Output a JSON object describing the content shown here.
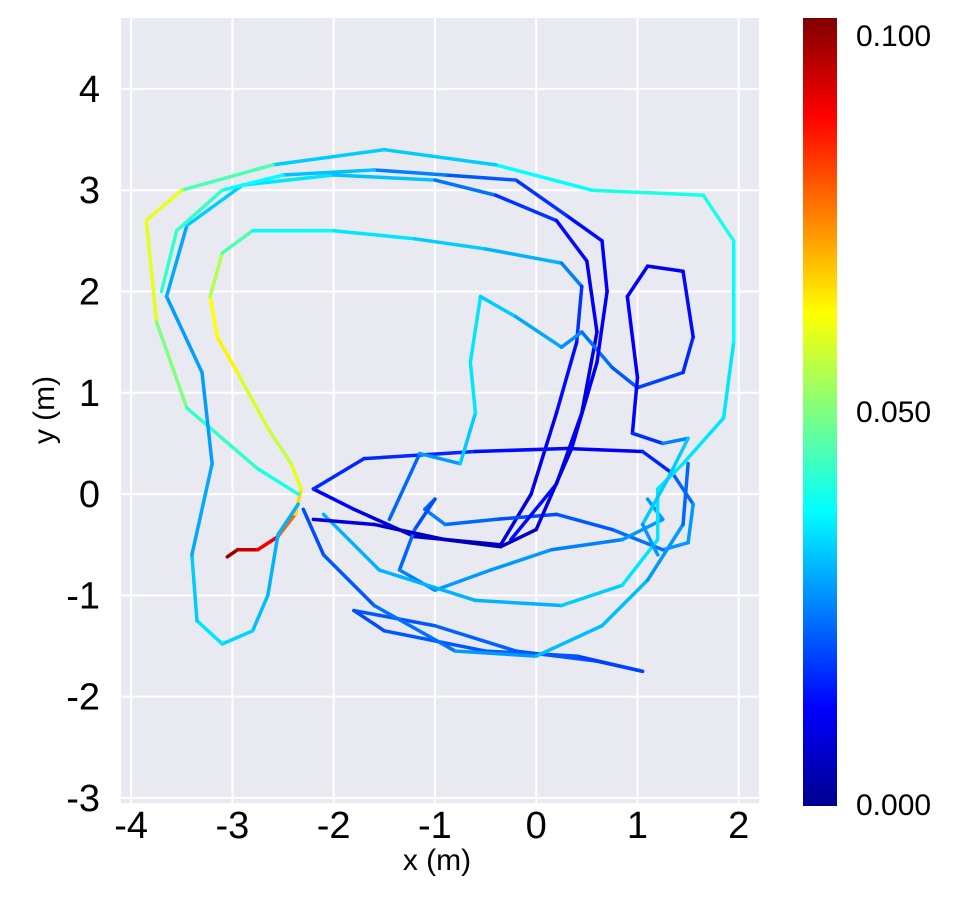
{
  "chart_data": {
    "type": "line",
    "xlabel": "x (m)",
    "ylabel": "y (m)",
    "xlim": [
      -4.1,
      2.2
    ],
    "ylim": [
      -3.05,
      4.7
    ],
    "xticks": [
      "-4",
      "-3",
      "-2",
      "-1",
      "0",
      "1",
      "2"
    ],
    "yticks": [
      "-3",
      "-2",
      "-1",
      "0",
      "1",
      "2",
      "3",
      "4"
    ],
    "grid": true,
    "background": "#e9e9f1",
    "colorbar": {
      "colormap": "jet",
      "range": [
        0.0,
        0.1
      ],
      "tick_labels": [
        "0.000",
        "0.050",
        "0.100"
      ],
      "placement": "right"
    },
    "series": [
      {
        "color_value_by_point": true,
        "points": [
          [
            -3.05,
            -0.62,
            0.1
          ],
          [
            -2.95,
            -0.55,
            0.095
          ],
          [
            -2.75,
            -0.55,
            0.092
          ],
          [
            -2.55,
            -0.42,
            0.085
          ],
          [
            -2.38,
            -0.2,
            0.07
          ],
          [
            -2.32,
            0.05,
            0.062
          ],
          [
            -2.42,
            0.3,
            0.058
          ],
          [
            -2.65,
            0.65,
            0.055
          ],
          [
            -2.95,
            1.2,
            0.062
          ],
          [
            -3.15,
            1.55,
            0.065
          ],
          [
            -3.22,
            1.95,
            0.06
          ],
          [
            -3.1,
            2.38,
            0.05
          ],
          [
            -2.8,
            2.6,
            0.04
          ],
          [
            -2.0,
            2.6,
            0.035
          ],
          [
            -1.2,
            2.52,
            0.035
          ],
          [
            -0.5,
            2.42,
            0.03
          ],
          [
            0.25,
            2.28,
            0.03
          ],
          [
            0.45,
            2.05,
            0.02
          ],
          [
            0.4,
            1.5,
            0.015
          ],
          [
            0.2,
            0.8,
            0.012
          ],
          [
            -0.05,
            0.0,
            0.01
          ],
          [
            -0.35,
            -0.5,
            0.008
          ]
        ]
      },
      {
        "color_value_by_point": true,
        "points": [
          [
            -0.35,
            -0.5,
            0.008
          ],
          [
            -1.2,
            -0.42,
            0.008
          ],
          [
            -1.8,
            -0.15,
            0.01
          ],
          [
            -2.2,
            0.05,
            0.015
          ],
          [
            -1.7,
            0.35,
            0.018
          ],
          [
            -0.6,
            0.42,
            0.015
          ],
          [
            0.3,
            0.45,
            0.012
          ],
          [
            1.05,
            0.42,
            0.012
          ],
          [
            1.35,
            0.2,
            0.02
          ],
          [
            1.55,
            -0.1,
            0.025
          ],
          [
            1.5,
            -0.48,
            0.03
          ],
          [
            1.25,
            -0.55,
            0.025
          ],
          [
            0.75,
            -0.35,
            0.022
          ],
          [
            0.2,
            -0.2,
            0.02
          ],
          [
            -0.4,
            -0.25,
            0.02
          ],
          [
            -0.9,
            -0.3,
            0.025
          ],
          [
            -1.1,
            -0.15,
            0.025
          ],
          [
            -1.0,
            -0.05,
            0.02
          ],
          [
            -1.2,
            -0.35,
            0.02
          ],
          [
            -1.35,
            -0.75,
            0.025
          ],
          [
            -1.0,
            -0.95,
            0.025
          ],
          [
            -0.45,
            -0.75,
            0.03
          ],
          [
            0.15,
            -0.55,
            0.025
          ],
          [
            0.85,
            -0.45,
            0.025
          ],
          [
            1.25,
            -0.25,
            0.03
          ],
          [
            1.1,
            -0.05,
            0.025
          ]
        ]
      },
      {
        "color_value_by_point": true,
        "points": [
          [
            -2.1,
            -0.2,
            0.03
          ],
          [
            -1.55,
            -0.75,
            0.03
          ],
          [
            -0.6,
            -1.05,
            0.03
          ],
          [
            0.25,
            -1.1,
            0.03
          ],
          [
            0.85,
            -0.9,
            0.035
          ],
          [
            1.2,
            -0.45,
            0.035
          ],
          [
            1.2,
            0.05,
            0.035
          ],
          [
            1.45,
            0.3,
            0.035
          ],
          [
            1.85,
            0.75,
            0.035
          ],
          [
            1.95,
            1.5,
            0.035
          ],
          [
            1.95,
            2.5,
            0.04
          ],
          [
            1.65,
            2.95,
            0.04
          ],
          [
            0.55,
            3.0,
            0.04
          ],
          [
            -0.4,
            3.25,
            0.035
          ],
          [
            -1.5,
            3.4,
            0.03
          ],
          [
            -2.6,
            3.25,
            0.035
          ],
          [
            -3.5,
            3.0,
            0.055
          ],
          [
            -3.85,
            2.7,
            0.065
          ],
          [
            -3.75,
            1.7,
            0.055
          ],
          [
            -3.45,
            0.85,
            0.045
          ],
          [
            -2.75,
            0.25,
            0.04
          ],
          [
            -2.35,
            0.0,
            0.04
          ]
        ]
      },
      {
        "color_value_by_point": true,
        "points": [
          [
            -2.35,
            -0.1,
            0.03
          ],
          [
            -2.55,
            -0.4,
            0.03
          ],
          [
            -2.65,
            -1.0,
            0.03
          ],
          [
            -2.8,
            -1.35,
            0.032
          ],
          [
            -3.1,
            -1.48,
            0.035
          ],
          [
            -3.35,
            -1.25,
            0.035
          ],
          [
            -3.4,
            -0.6,
            0.03
          ],
          [
            -3.2,
            0.3,
            0.028
          ],
          [
            -3.3,
            1.2,
            0.028
          ],
          [
            -3.65,
            1.95,
            0.028
          ],
          [
            -3.45,
            2.65,
            0.03
          ],
          [
            -2.9,
            3.05,
            0.035
          ],
          [
            -2.0,
            3.15,
            0.035
          ],
          [
            -1.0,
            3.1,
            0.028
          ],
          [
            -0.4,
            2.95,
            0.02
          ],
          [
            0.2,
            2.7,
            0.015
          ],
          [
            0.5,
            2.3,
            0.012
          ],
          [
            0.6,
            1.6,
            0.01
          ],
          [
            0.45,
            0.8,
            0.01
          ],
          [
            0.2,
            0.1,
            0.012
          ],
          [
            -0.25,
            -0.45,
            0.015
          ]
        ]
      },
      {
        "color_value_by_point": true,
        "points": [
          [
            -1.45,
            -0.25,
            0.02
          ],
          [
            -1.15,
            0.4,
            0.025
          ],
          [
            -0.75,
            0.3,
            0.03
          ],
          [
            -0.6,
            0.8,
            0.035
          ],
          [
            -0.65,
            1.3,
            0.035
          ],
          [
            -0.55,
            1.95,
            0.035
          ],
          [
            -0.2,
            1.75,
            0.03
          ],
          [
            0.25,
            1.45,
            0.028
          ],
          [
            0.45,
            1.6,
            0.025
          ],
          [
            0.75,
            1.25,
            0.022
          ],
          [
            1.0,
            1.05,
            0.02
          ],
          [
            1.45,
            1.2,
            0.018
          ],
          [
            1.55,
            1.55,
            0.015
          ],
          [
            1.45,
            2.2,
            0.012
          ],
          [
            1.1,
            2.25,
            0.012
          ],
          [
            0.9,
            1.95,
            0.012
          ],
          [
            1.0,
            1.15,
            0.012
          ],
          [
            0.95,
            0.6,
            0.014
          ],
          [
            1.25,
            0.5,
            0.02
          ],
          [
            1.5,
            0.55,
            0.03
          ],
          [
            1.3,
            0.15,
            0.035
          ],
          [
            1.05,
            -0.3,
            0.03
          ],
          [
            1.2,
            -0.6,
            0.025
          ]
        ]
      },
      {
        "color_value_by_point": true,
        "points": [
          [
            -1.8,
            -1.15,
            0.02
          ],
          [
            -1.0,
            -1.3,
            0.022
          ],
          [
            -0.2,
            -1.55,
            0.022
          ],
          [
            0.6,
            -1.65,
            0.02
          ],
          [
            1.05,
            -1.75,
            0.018
          ],
          [
            0.4,
            -1.6,
            0.02
          ],
          [
            -0.5,
            -1.55,
            0.022
          ],
          [
            -1.5,
            -1.35,
            0.02
          ],
          [
            -1.8,
            -1.15,
            0.02
          ]
        ]
      },
      {
        "color_value_by_point": true,
        "points": [
          [
            -2.3,
            -0.15,
            0.02
          ],
          [
            -2.1,
            -0.6,
            0.02
          ],
          [
            -1.6,
            -1.1,
            0.022
          ],
          [
            -0.8,
            -1.55,
            0.025
          ],
          [
            0.0,
            -1.6,
            0.03
          ],
          [
            0.65,
            -1.3,
            0.032
          ],
          [
            1.1,
            -0.85,
            0.03
          ],
          [
            1.45,
            -0.3,
            0.025
          ],
          [
            1.5,
            0.3,
            0.02
          ]
        ]
      },
      {
        "color_value_by_point": true,
        "points": [
          [
            -2.2,
            -0.25,
            0.01
          ],
          [
            -1.6,
            -0.3,
            0.008
          ],
          [
            -0.9,
            -0.45,
            0.005
          ],
          [
            -0.35,
            -0.52,
            0.005
          ],
          [
            0.0,
            -0.35,
            0.008
          ],
          [
            0.35,
            0.45,
            0.01
          ],
          [
            0.6,
            1.3,
            0.012
          ],
          [
            0.7,
            2.0,
            0.012
          ],
          [
            0.65,
            2.5,
            0.012
          ],
          [
            0.3,
            2.75,
            0.015
          ],
          [
            -0.2,
            3.1,
            0.02
          ],
          [
            -0.9,
            3.15,
            0.022
          ],
          [
            -1.6,
            3.2,
            0.028
          ],
          [
            -2.5,
            3.15,
            0.035
          ],
          [
            -3.1,
            3.0,
            0.04
          ],
          [
            -3.55,
            2.6,
            0.045
          ],
          [
            -3.7,
            2.0,
            0.04
          ]
        ]
      }
    ]
  }
}
